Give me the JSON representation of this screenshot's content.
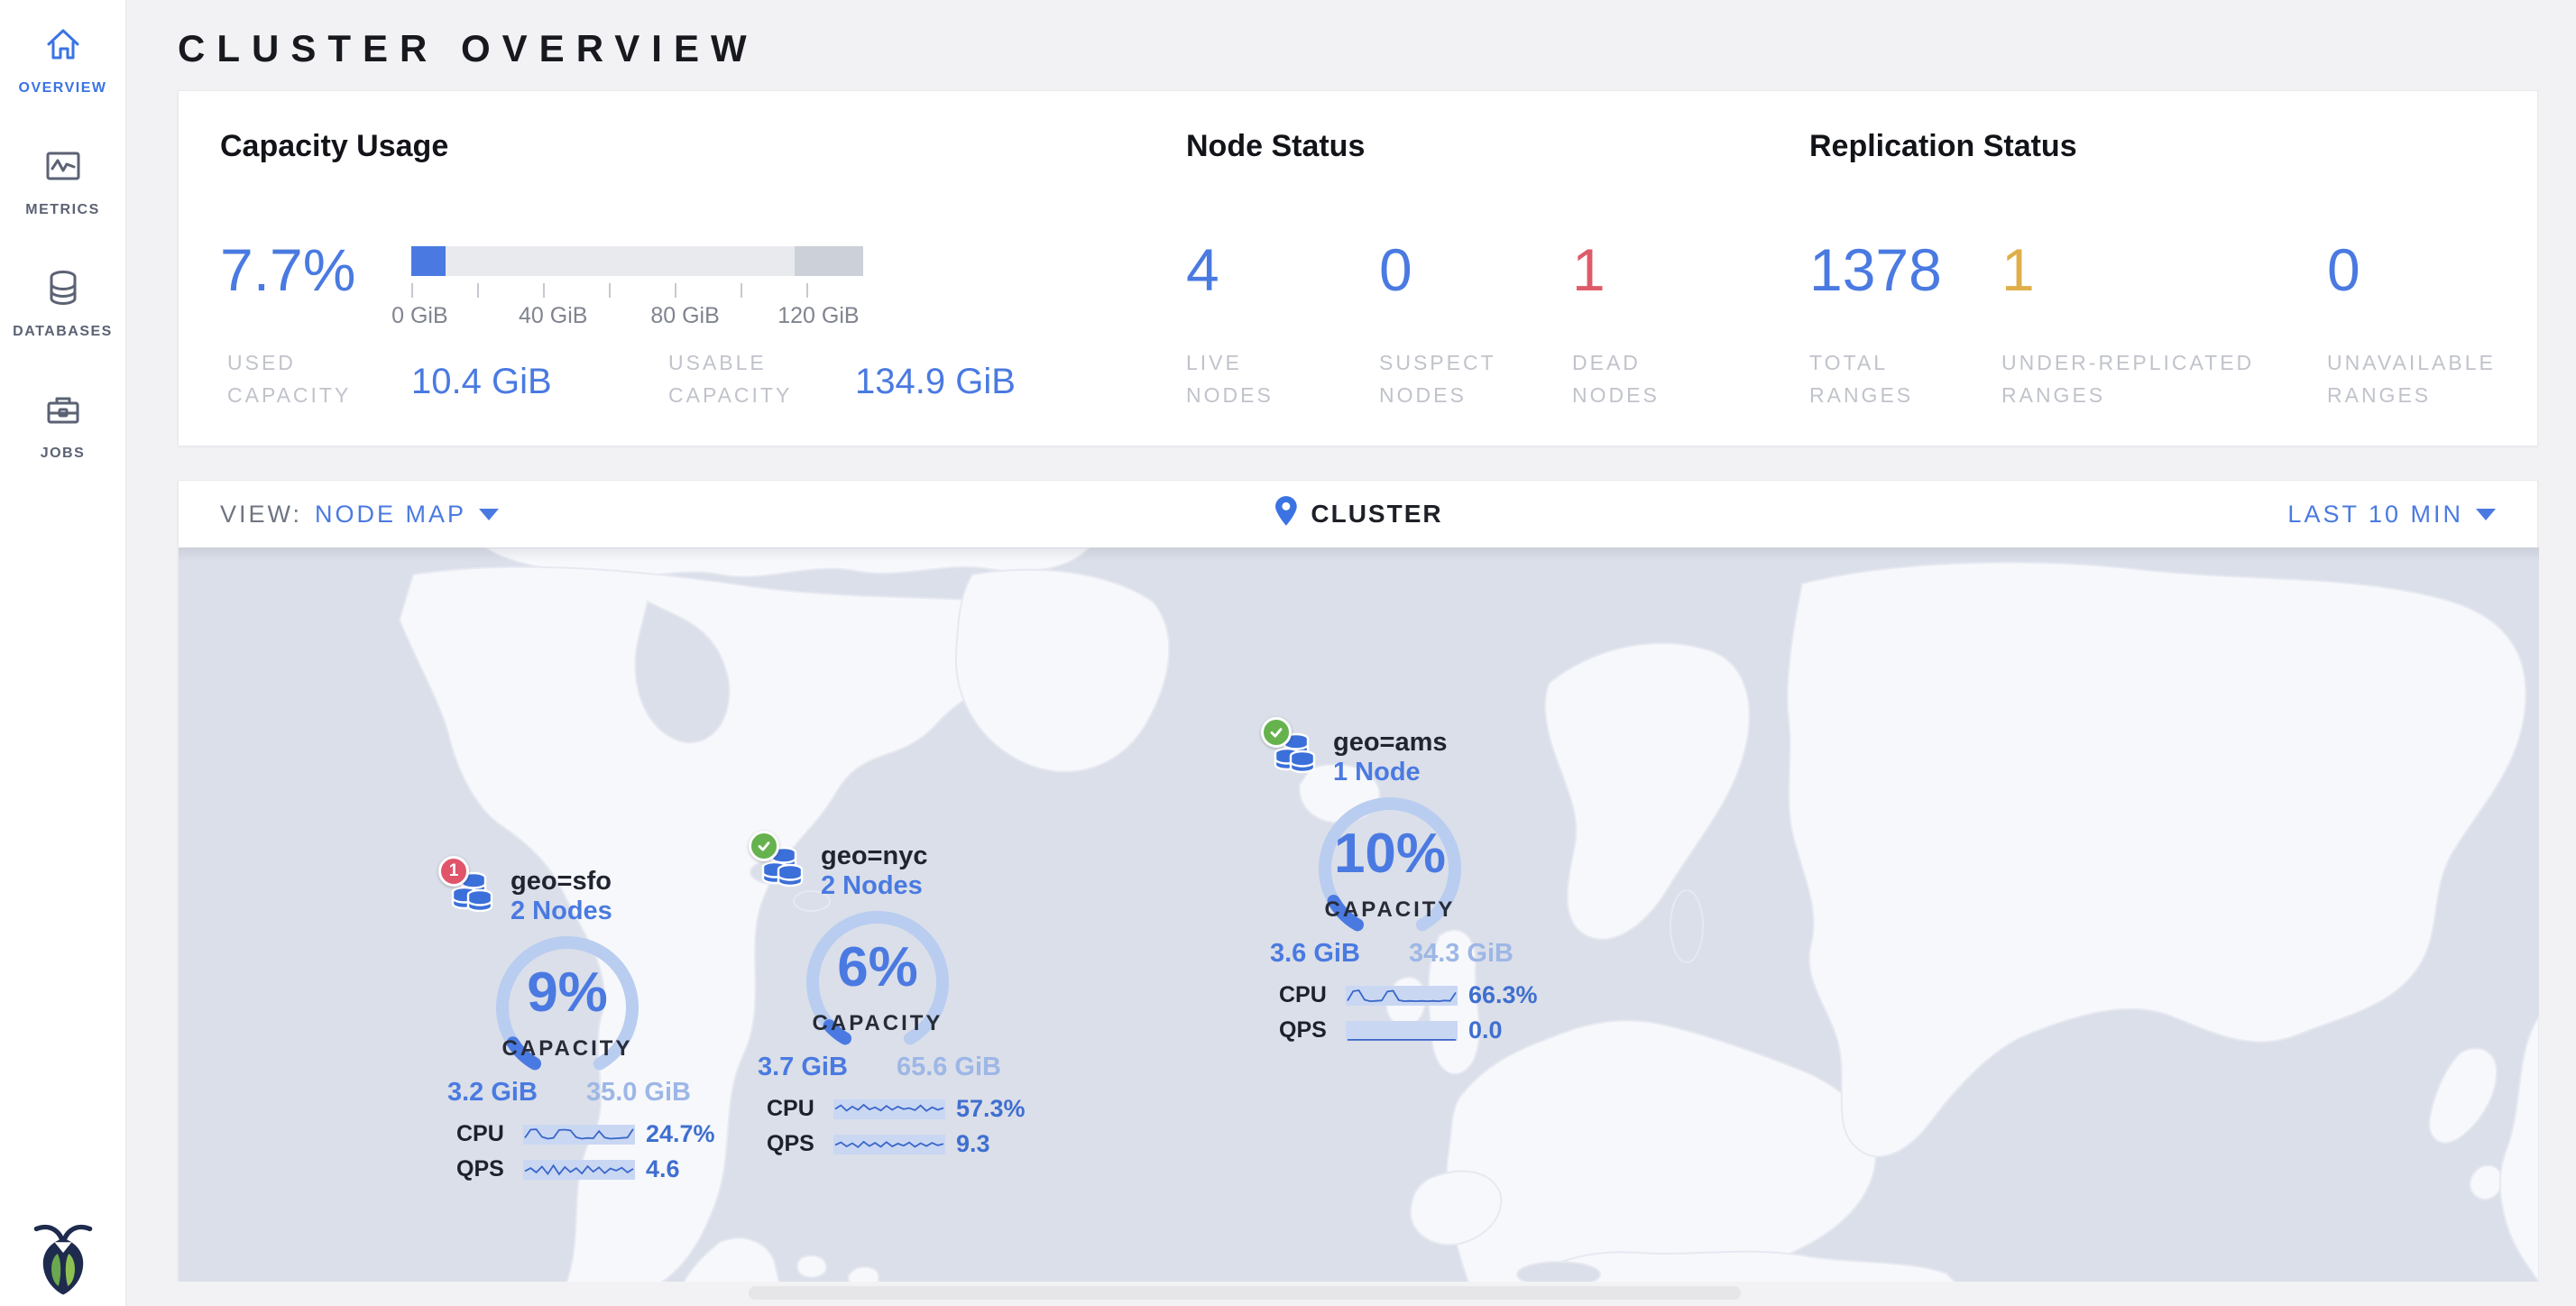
{
  "header": {
    "title": "CLUSTER OVERVIEW"
  },
  "sidebar": {
    "items": [
      {
        "label": "OVERVIEW",
        "icon": "home-icon",
        "active": true
      },
      {
        "label": "METRICS",
        "icon": "metrics-icon",
        "active": false
      },
      {
        "label": "DATABASES",
        "icon": "databases-icon",
        "active": false
      },
      {
        "label": "JOBS",
        "icon": "jobs-icon",
        "active": false
      }
    ]
  },
  "colors": {
    "accent_blue": "#4a7ae1",
    "dead_red": "#de5b69",
    "warn_amber": "#e0ae49",
    "gauge_track": "#b9cdf0",
    "ocean": "#dbdfe9",
    "land": "#f7f8fb"
  },
  "stats": {
    "capacity": {
      "title": "Capacity Usage",
      "percent": "7.7%",
      "bar": {
        "fill_pct": 7.6,
        "dark_start_pct": 84.8,
        "dark_width_pct": 15.2,
        "ticks": [
          {
            "pct": 0,
            "label": "0 GiB"
          },
          {
            "pct": 14.6
          },
          {
            "pct": 29.1,
            "label": "40 GiB"
          },
          {
            "pct": 43.7
          },
          {
            "pct": 58.3,
            "label": "80 GiB"
          },
          {
            "pct": 72.9
          },
          {
            "pct": 87.4,
            "label": "120 GiB"
          }
        ]
      },
      "used": {
        "label1": "USED",
        "label2": "CAPACITY",
        "value": "10.4 GiB"
      },
      "usable": {
        "label1": "USABLE",
        "label2": "CAPACITY",
        "value": "134.9 GiB"
      }
    },
    "nodes": {
      "title": "Node Status",
      "items": [
        {
          "value": "4",
          "label1": "LIVE",
          "label2": "NODES",
          "color": "#4a7ae1"
        },
        {
          "value": "0",
          "label1": "SUSPECT",
          "label2": "NODES",
          "color": "#4a7ae1"
        },
        {
          "value": "1",
          "label1": "DEAD",
          "label2": "NODES",
          "color": "#de5b69"
        }
      ]
    },
    "replication": {
      "title": "Replication Status",
      "items": [
        {
          "value": "1378",
          "label1": "TOTAL",
          "label2": "RANGES",
          "color": "#4a7ae1"
        },
        {
          "value": "1",
          "label1": "UNDER-REPLICATED",
          "label2": "RANGES",
          "color": "#e0ae49"
        },
        {
          "value": "0",
          "label1": "UNAVAILABLE",
          "label2": "RANGES",
          "color": "#4a7ae1"
        }
      ]
    }
  },
  "viewbar": {
    "view_label": "VIEW:",
    "view_value": "NODE MAP",
    "breadcrumb": "CLUSTER",
    "time_range": "LAST 10 MIN"
  },
  "map": {
    "nodes": [
      {
        "id": "sfo",
        "name": "geo=sfo",
        "count": "2 Nodes",
        "badge": "dead",
        "badge_count": "1",
        "capacity_pct": 9,
        "capacity_text": "9%",
        "capacity_label": "CAPACITY",
        "used": "3.2 GiB",
        "usable": "35.0 GiB",
        "cpu_label": "CPU",
        "cpu_value": "24.7%",
        "qps_label": "QPS",
        "qps_value": "4.6",
        "cpu_spark": [
          35,
          80,
          82,
          40,
          30,
          34,
          78,
          80,
          76,
          38,
          30,
          34,
          32,
          72,
          36,
          30,
          32,
          34,
          36,
          84
        ],
        "qps_spark": [
          45,
          62,
          38,
          70,
          30,
          76,
          28,
          68,
          40,
          62,
          32,
          72,
          42,
          66,
          34,
          60,
          48,
          64,
          38,
          58
        ]
      },
      {
        "id": "nyc",
        "name": "geo=nyc",
        "count": "2 Nodes",
        "badge": "healthy",
        "badge_count": "",
        "capacity_pct": 6,
        "capacity_text": "6%",
        "capacity_label": "CAPACITY",
        "used": "3.7 GiB",
        "usable": "65.6 GiB",
        "cpu_label": "CPU",
        "cpu_value": "57.3%",
        "qps_label": "QPS",
        "qps_value": "9.3",
        "cpu_spark": [
          55,
          75,
          45,
          68,
          50,
          78,
          52,
          64,
          46,
          72,
          50,
          68,
          54,
          60,
          48,
          74,
          44,
          64,
          50,
          60
        ],
        "qps_spark": [
          50,
          65,
          42,
          60,
          38,
          68,
          44,
          62,
          40,
          66,
          42,
          58,
          46,
          64,
          40,
          60,
          44,
          62,
          48,
          56
        ]
      },
      {
        "id": "ams",
        "name": "geo=ams",
        "count": "1 Node",
        "badge": "healthy",
        "badge_count": "",
        "capacity_pct": 10,
        "capacity_text": "10%",
        "capacity_label": "CAPACITY",
        "used": "3.6 GiB",
        "usable": "34.3 GiB",
        "cpu_label": "CPU",
        "cpu_value": "66.3%",
        "qps_label": "QPS",
        "qps_value": "0.0",
        "cpu_spark": [
          25,
          78,
          82,
          30,
          22,
          24,
          26,
          76,
          80,
          28,
          22,
          24,
          22,
          24,
          22,
          24,
          22,
          26,
          24,
          70
        ],
        "qps_spark": [
          3,
          3,
          3,
          3,
          3,
          3,
          3,
          3,
          3,
          3,
          3,
          3,
          3,
          3,
          3,
          3,
          3,
          3,
          3,
          3
        ]
      }
    ]
  }
}
